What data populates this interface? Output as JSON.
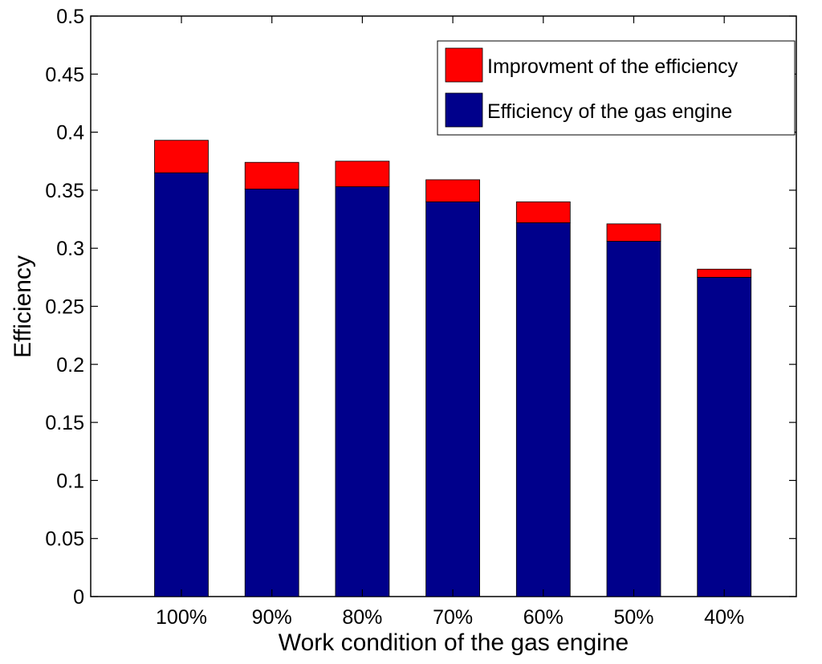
{
  "chart_data": {
    "type": "bar",
    "stacked": true,
    "categories": [
      "100%",
      "90%",
      "80%",
      "70%",
      "60%",
      "50%",
      "40%"
    ],
    "series": [
      {
        "name": "Efficiency of the gas engine",
        "color": "#00008B",
        "values": [
          0.365,
          0.351,
          0.353,
          0.34,
          0.322,
          0.306,
          0.275
        ]
      },
      {
        "name": "Improvment of the efficiency",
        "color": "#FF0000",
        "values": [
          0.028,
          0.023,
          0.022,
          0.019,
          0.018,
          0.015,
          0.007
        ]
      }
    ],
    "xlabel": "Work condition of the gas engine",
    "ylabel": "Efficiency",
    "ylim": [
      0,
      0.5
    ],
    "yticks": [
      "0",
      "0.05",
      "0.1",
      "0.15",
      "0.2",
      "0.25",
      "0.3",
      "0.35",
      "0.4",
      "0.45",
      "0.5"
    ],
    "legend_position": "top-right",
    "grid": false
  }
}
